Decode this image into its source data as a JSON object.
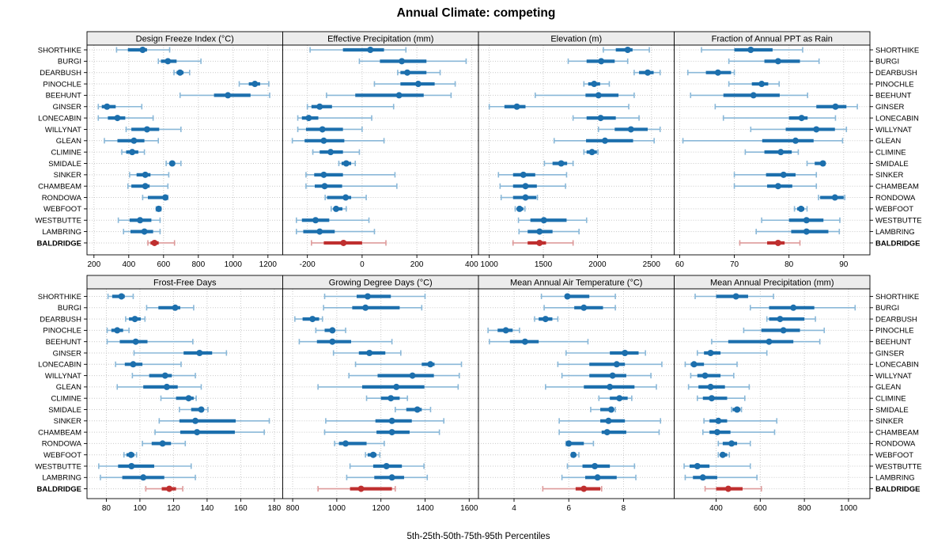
{
  "title": "Annual Climate: competing",
  "footer": "5th-25th-50th-75th-95th Percentiles",
  "highlight_site": "BALDRIDGE",
  "percentile_labels": [
    "5th",
    "25th",
    "50th",
    "75th",
    "95th"
  ],
  "sites": [
    "SHORTHIKE",
    "BURGI",
    "DEARBUSH",
    "PINOCHLE",
    "BEEHUNT",
    "GINSER",
    "LONECABIN",
    "WILLYNAT",
    "GLEAN",
    "CLIMINE",
    "SMIDALE",
    "SINKER",
    "CHAMBEAM",
    "RONDOWA",
    "WEBFOOT",
    "WESTBUTTE",
    "LAMBRING",
    "BALDRIDGE"
  ],
  "colors": {
    "series_blue": "#1c6fad",
    "series_blue_light": "#8ab8d8",
    "highlight_red": "#bf2f2f",
    "highlight_red_light": "#de9b9b",
    "strip_bg": "#ececec",
    "grid": "#c9c9c9",
    "border": "#000000"
  },
  "chart_data": [
    {
      "type": "scatter",
      "subtype": "percentile-dot-interval",
      "orientation": "horizontal",
      "grid": true,
      "title": "Design Freeze Index (°C)",
      "xlim": [
        160,
        1285
      ],
      "xticks": [
        200,
        400,
        600,
        800,
        1000,
        1200
      ],
      "rows": [
        [
          330,
          395,
          480,
          505,
          635
        ],
        [
          570,
          585,
          625,
          675,
          815
        ],
        [
          660,
          675,
          695,
          715,
          750
        ],
        [
          1035,
          1090,
          1125,
          1155,
          1205
        ],
        [
          695,
          890,
          970,
          1100,
          1210
        ],
        [
          225,
          245,
          275,
          325,
          475
        ],
        [
          225,
          280,
          335,
          380,
          540
        ],
        [
          385,
          415,
          505,
          575,
          700
        ],
        [
          260,
          335,
          430,
          490,
          570
        ],
        [
          360,
          385,
          420,
          455,
          490
        ],
        [
          615,
          633,
          650,
          666,
          700
        ],
        [
          405,
          445,
          495,
          525,
          630
        ],
        [
          395,
          415,
          495,
          520,
          625
        ],
        [
          480,
          510,
          610,
          620,
          625
        ],
        [
          558,
          566,
          572,
          578,
          585
        ],
        [
          340,
          405,
          465,
          530,
          580
        ],
        [
          370,
          410,
          490,
          540,
          580
        ],
        [
          510,
          525,
          548,
          572,
          663
        ]
      ]
    },
    {
      "type": "scatter",
      "subtype": "percentile-dot-interval",
      "orientation": "horizontal",
      "grid": true,
      "title": "Effective Precipitation (mm)",
      "xlim": [
        -290,
        425
      ],
      "xticks": [
        -200,
        0,
        200,
        400
      ],
      "rows": [
        [
          -190,
          -70,
          30,
          80,
          160
        ],
        [
          -10,
          65,
          145,
          235,
          380
        ],
        [
          130,
          140,
          165,
          235,
          285
        ],
        [
          45,
          140,
          205,
          265,
          340
        ],
        [
          -130,
          -25,
          135,
          225,
          325
        ],
        [
          -200,
          -185,
          -155,
          -110,
          115
        ],
        [
          -235,
          -220,
          -195,
          -160,
          35
        ],
        [
          -235,
          -205,
          -145,
          -70,
          0
        ],
        [
          -255,
          -210,
          -140,
          -65,
          80
        ],
        [
          -180,
          -155,
          -115,
          -70,
          -10
        ],
        [
          -85,
          -75,
          -58,
          -40,
          -25
        ],
        [
          -205,
          -175,
          -140,
          -70,
          120
        ],
        [
          -205,
          -173,
          -137,
          -73,
          127
        ],
        [
          -135,
          -128,
          -60,
          -40,
          15
        ],
        [
          -113,
          -100,
          -95,
          -72,
          -58
        ],
        [
          -240,
          -220,
          -170,
          -120,
          25
        ],
        [
          -240,
          -215,
          -155,
          -100,
          45
        ],
        [
          -185,
          -140,
          -68,
          0,
          87
        ]
      ]
    },
    {
      "type": "scatter",
      "subtype": "percentile-dot-interval",
      "orientation": "horizontal",
      "grid": true,
      "title": "Elevation (m)",
      "xlim": [
        900,
        2710
      ],
      "xticks": [
        1000,
        1500,
        2000,
        2500
      ],
      "rows": [
        [
          2055,
          2170,
          2280,
          2325,
          2480
        ],
        [
          1730,
          1900,
          2035,
          2160,
          2280
        ],
        [
          2340,
          2385,
          2465,
          2520,
          2580
        ],
        [
          1875,
          1915,
          1970,
          2025,
          2110
        ],
        [
          1425,
          1890,
          2010,
          2195,
          2340
        ],
        [
          1000,
          1140,
          1255,
          1335,
          2290
        ],
        [
          1775,
          1900,
          2030,
          2170,
          2385
        ],
        [
          2010,
          2160,
          2310,
          2465,
          2580
        ],
        [
          1600,
          1895,
          2070,
          2330,
          2525
        ],
        [
          1875,
          1900,
          1950,
          1995,
          2005
        ],
        [
          1510,
          1585,
          1665,
          1720,
          1775
        ],
        [
          1085,
          1220,
          1315,
          1425,
          1715
        ],
        [
          1100,
          1220,
          1335,
          1440,
          1705
        ],
        [
          1110,
          1220,
          1335,
          1435,
          1445
        ],
        [
          1240,
          1255,
          1280,
          1315,
          1330
        ],
        [
          1270,
          1380,
          1505,
          1715,
          1900
        ],
        [
          1275,
          1355,
          1465,
          1585,
          1830
        ],
        [
          1220,
          1355,
          1465,
          1525,
          1775
        ]
      ]
    },
    {
      "type": "scatter",
      "subtype": "percentile-dot-interval",
      "orientation": "horizontal",
      "grid": true,
      "title": "Fraction of Annual PPT as Rain",
      "xlim": [
        59,
        94.8
      ],
      "xticks": [
        60,
        70,
        80,
        90
      ],
      "rows": [
        [
          64,
          70,
          73,
          77,
          82.5
        ],
        [
          69,
          75.5,
          78,
          82,
          85.5
        ],
        [
          61.5,
          64.8,
          67,
          69.4,
          70
        ],
        [
          69,
          73.2,
          75,
          76.2,
          78.2
        ],
        [
          62,
          68,
          73.5,
          78.3,
          83.4
        ],
        [
          66.5,
          85,
          88.5,
          90.5,
          92.5
        ],
        [
          68,
          80,
          82.3,
          83.4,
          88.5
        ],
        [
          73,
          79.4,
          85,
          88.4,
          90.5
        ],
        [
          60.6,
          75.1,
          81.2,
          84.5,
          89.8
        ],
        [
          72,
          75.5,
          78.5,
          80.5,
          81.7
        ],
        [
          83.3,
          84.7,
          86.2,
          86.4,
          86.5
        ],
        [
          70,
          75.8,
          79,
          81.2,
          85
        ],
        [
          70,
          76,
          78,
          80.6,
          85
        ],
        [
          85.4,
          85.7,
          88.4,
          90,
          90.2
        ],
        [
          81,
          81.5,
          82.2,
          82.8,
          83.3
        ],
        [
          75,
          80,
          83.2,
          86.3,
          89.3
        ],
        [
          74,
          80.4,
          83.2,
          87.2,
          89.2
        ],
        [
          71,
          76,
          78,
          79.2,
          82
        ]
      ]
    },
    {
      "type": "scatter",
      "subtype": "percentile-dot-interval",
      "orientation": "horizontal",
      "grid": true,
      "title": "Frost-Free Days",
      "xlim": [
        68.5,
        185
      ],
      "xticks": [
        80,
        100,
        120,
        140,
        160,
        180
      ],
      "rows": [
        [
          81,
          83.5,
          89,
          91,
          96
        ],
        [
          104,
          111,
          121,
          124,
          132
        ],
        [
          91.5,
          93.5,
          97,
          100.5,
          103
        ],
        [
          80.5,
          83,
          86.5,
          90,
          93.5
        ],
        [
          80.5,
          88,
          97.5,
          104.5,
          131.5
        ],
        [
          96.5,
          126,
          135.5,
          143,
          151.5
        ],
        [
          85.5,
          91,
          96,
          101.5,
          124.5
        ],
        [
          95.5,
          105.5,
          115,
          119,
          133
        ],
        [
          86.5,
          102,
          116,
          122.5,
          136.5
        ],
        [
          112.5,
          121.5,
          129,
          132,
          133.5
        ],
        [
          123.5,
          130.5,
          136.5,
          138,
          140.5
        ],
        [
          111.5,
          123.5,
          133,
          157,
          177
        ],
        [
          109,
          124,
          134,
          156.5,
          174
        ],
        [
          101.5,
          107,
          113.5,
          118.5,
          127
        ],
        [
          90.5,
          92,
          94.7,
          96.7,
          98
        ],
        [
          75.5,
          87,
          95,
          108.5,
          130.5
        ],
        [
          76.5,
          89.5,
          102,
          114.5,
          133
        ],
        [
          103.5,
          113,
          117.5,
          121.5,
          125.5
        ]
      ]
    },
    {
      "type": "scatter",
      "subtype": "percentile-dot-interval",
      "orientation": "horizontal",
      "grid": true,
      "title": "Growing Degree Days (°C)",
      "xlim": [
        755,
        1642
      ],
      "xticks": [
        800,
        1000,
        1200,
        1400,
        1600
      ],
      "rows": [
        [
          945,
          1090,
          1140,
          1245,
          1400
        ],
        [
          940,
          1070,
          1130,
          1285,
          1385
        ],
        [
          810,
          845,
          890,
          920,
          935
        ],
        [
          905,
          945,
          980,
          990,
          1040
        ],
        [
          830,
          910,
          980,
          1065,
          1250
        ],
        [
          985,
          1100,
          1148,
          1220,
          1290
        ],
        [
          1085,
          1385,
          1424,
          1443,
          1565
        ],
        [
          1055,
          1185,
          1343,
          1440,
          1555
        ],
        [
          915,
          1115,
          1270,
          1397,
          1550
        ],
        [
          1135,
          1200,
          1245,
          1285,
          1320
        ],
        [
          1265,
          1315,
          1365,
          1385,
          1425
        ],
        [
          950,
          1175,
          1250,
          1340,
          1485
        ],
        [
          945,
          1180,
          1250,
          1330,
          1465
        ],
        [
          990,
          1010,
          1040,
          1135,
          1215
        ],
        [
          1130,
          1140,
          1165,
          1180,
          1195
        ],
        [
          1060,
          1165,
          1225,
          1295,
          1395
        ],
        [
          1045,
          1170,
          1250,
          1305,
          1410
        ],
        [
          915,
          1060,
          1110,
          1250,
          1265
        ]
      ]
    },
    {
      "type": "scatter",
      "subtype": "percentile-dot-interval",
      "orientation": "horizontal",
      "grid": true,
      "title": "Mean Annual Air Temperature (°C)",
      "xlim": [
        2.7,
        9.85
      ],
      "xticks": [
        4,
        6,
        8
      ],
      "rows": [
        [
          5.0,
          5.85,
          5.95,
          6.75,
          7.7
        ],
        [
          5.1,
          6.2,
          6.55,
          7.25,
          7.7
        ],
        [
          4.75,
          4.9,
          5.15,
          5.4,
          5.6
        ],
        [
          3.05,
          3.4,
          3.7,
          3.95,
          4.2
        ],
        [
          3.1,
          3.85,
          4.4,
          4.9,
          6.7
        ],
        [
          5.9,
          7.5,
          8.05,
          8.55,
          8.8
        ],
        [
          5.6,
          6.75,
          7.75,
          8.05,
          9.4
        ],
        [
          5.75,
          6.75,
          7.6,
          8.1,
          9.0
        ],
        [
          5.15,
          6.55,
          7.5,
          8.4,
          9.2
        ],
        [
          7.1,
          7.5,
          7.85,
          8.15,
          8.3
        ],
        [
          6.8,
          7.15,
          7.55,
          7.65,
          7.7
        ],
        [
          5.65,
          7.15,
          7.45,
          8.05,
          9.35
        ],
        [
          5.65,
          7.2,
          7.4,
          8.1,
          9.3
        ],
        [
          5.9,
          5.98,
          6.0,
          6.55,
          6.9
        ],
        [
          6.1,
          6.12,
          6.17,
          6.27,
          6.37
        ],
        [
          5.95,
          6.5,
          6.95,
          7.5,
          8.4
        ],
        [
          5.75,
          6.6,
          7.05,
          7.75,
          8.45
        ],
        [
          5.05,
          6.25,
          6.55,
          7.15,
          7.2
        ]
      ]
    },
    {
      "type": "scatter",
      "subtype": "percentile-dot-interval",
      "orientation": "horizontal",
      "grid": true,
      "title": "Mean Annual Precipitation (mm)",
      "xlim": [
        210,
        1097
      ],
      "xticks": [
        400,
        600,
        800,
        1000
      ],
      "rows": [
        [
          305,
          400,
          490,
          545,
          660
        ],
        [
          555,
          640,
          750,
          845,
          1030
        ],
        [
          630,
          640,
          690,
          800,
          850
        ],
        [
          525,
          605,
          705,
          780,
          890
        ],
        [
          380,
          455,
          640,
          750,
          870
        ],
        [
          315,
          345,
          375,
          420,
          630
        ],
        [
          260,
          285,
          300,
          345,
          495
        ],
        [
          285,
          315,
          350,
          420,
          480
        ],
        [
          275,
          320,
          375,
          440,
          550
        ],
        [
          315,
          340,
          380,
          450,
          530
        ],
        [
          470,
          475,
          495,
          510,
          515
        ],
        [
          345,
          370,
          410,
          450,
          675
        ],
        [
          340,
          370,
          405,
          465,
          665
        ],
        [
          410,
          430,
          470,
          495,
          555
        ],
        [
          410,
          418,
          430,
          450,
          460
        ],
        [
          255,
          280,
          315,
          370,
          555
        ],
        [
          260,
          295,
          340,
          405,
          585
        ],
        [
          350,
          400,
          455,
          520,
          605
        ]
      ]
    }
  ]
}
